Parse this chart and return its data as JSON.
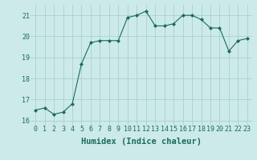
{
  "x": [
    0,
    1,
    2,
    3,
    4,
    5,
    6,
    7,
    8,
    9,
    10,
    11,
    12,
    13,
    14,
    15,
    16,
    17,
    18,
    19,
    20,
    21,
    22,
    23
  ],
  "y": [
    16.5,
    16.6,
    16.3,
    16.4,
    16.8,
    18.7,
    19.7,
    19.8,
    19.8,
    19.8,
    20.9,
    21.0,
    21.2,
    20.5,
    20.5,
    20.6,
    21.0,
    21.0,
    20.8,
    20.4,
    20.4,
    19.3,
    19.8,
    19.9
  ],
  "xlabel": "Humidex (Indice chaleur)",
  "ylim": [
    15.8,
    21.5
  ],
  "xlim": [
    -0.5,
    23.5
  ],
  "yticks": [
    16,
    17,
    18,
    19,
    20,
    21
  ],
  "xticks": [
    0,
    1,
    2,
    3,
    4,
    5,
    6,
    7,
    8,
    9,
    10,
    11,
    12,
    13,
    14,
    15,
    16,
    17,
    18,
    19,
    20,
    21,
    22,
    23
  ],
  "line_color": "#1a6b5a",
  "marker": "D",
  "marker_size": 2.0,
  "bg_color": "#cceaea",
  "grid_color": "#aacfcf",
  "tick_label_fontsize": 6.0,
  "xlabel_fontsize": 7.5
}
